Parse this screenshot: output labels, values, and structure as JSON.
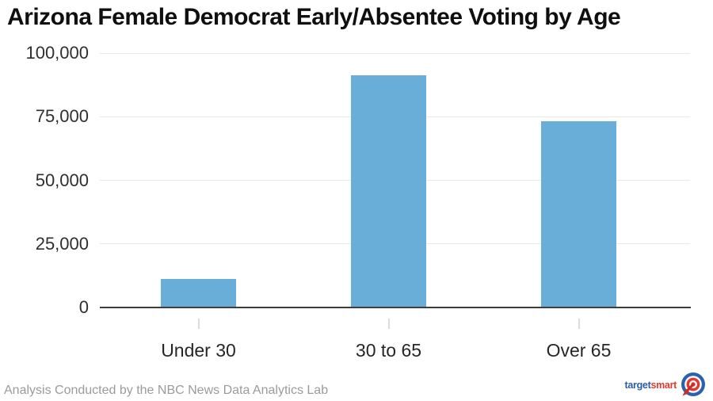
{
  "title": "Arizona Female Democrat Early/Absentee Voting by Age",
  "footer": {
    "credit": "Analysis Conducted by the NBC News Data Analytics Lab"
  },
  "logo": {
    "text_part1": "target",
    "text_part2": "smart",
    "icon": "target-bullseye-icon"
  },
  "colors": {
    "bar": "#69AED8",
    "gridline": "#E9E9E9",
    "axis_line": "#3D3D3D",
    "xtick": "#DCDCDC",
    "title_text": "#0F0F0F",
    "tick_label_text": "#2F2F2F",
    "footer_text": "#9B9B9B",
    "logo_blue": "#2B5DA7",
    "logo_red": "#E23B2E",
    "background": "#FFFFFF"
  },
  "chart_data": {
    "type": "bar",
    "title": "Arizona Female Democrat Early/Absentee Voting by Age",
    "categories": [
      "Under 30",
      "30 to 65",
      "Over 65"
    ],
    "values": [
      11000,
      91000,
      73000
    ],
    "xlabel": "",
    "ylabel": "",
    "ylim": [
      0,
      100000
    ],
    "yticks": [
      0,
      25000,
      50000,
      75000,
      100000
    ],
    "ytick_labels": [
      "0",
      "25,000",
      "50,000",
      "75,000",
      "100,000"
    ],
    "grid": "horizontal-only",
    "legend": "none",
    "bar_color": "#69AED8"
  }
}
